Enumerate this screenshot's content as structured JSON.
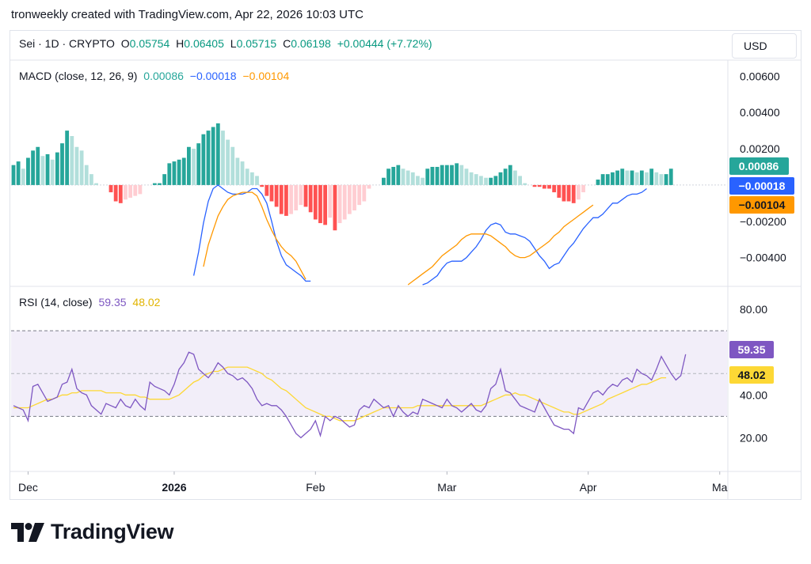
{
  "header": {
    "attribution": "tronweekly created with TradingView.com, Apr 22, 2026 10:03 UTC"
  },
  "symbol": {
    "name": "Sei · 1D · CRYPTO",
    "o_label": "O",
    "o_value": "0.05754",
    "h_label": "H",
    "h_value": "0.06405",
    "l_label": "L",
    "l_value": "0.05715",
    "c_label": "C",
    "c_value": "0.06198",
    "change": "+0.00444 (+7.72%)"
  },
  "currency": "USD",
  "macd": {
    "label": "MACD (close, 12, 26, 9)",
    "hist_value": "0.00086",
    "macd_value": "−0.00018",
    "signal_value": "−0.00104"
  },
  "rsi": {
    "label": "RSI (14, close)",
    "rsi_value": "59.35",
    "ma_value": "48.02"
  },
  "logo": {
    "text": "TradingView"
  },
  "colors": {
    "hist_pos_strong": "#26a69a",
    "hist_pos_weak": "#b2dfdb",
    "hist_neg_strong": "#ff5252",
    "hist_neg_weak": "#ffcdd2",
    "macd_line": "#2962ff",
    "signal_line": "#ff9800",
    "rsi_line": "#7e57c2",
    "rsi_ma": "#fdd835",
    "rsi_band": "#7e57c2"
  },
  "chart_data": [
    {
      "type": "bar",
      "name": "MACD",
      "x_ticks": [
        "Dec",
        "2026",
        "Feb",
        "Mar",
        "Apr",
        "Ma"
      ],
      "y_ticks": [
        "0.00600",
        "0.00400",
        "0.00200",
        "−0.00200",
        "−0.00400"
      ],
      "ylim": [
        -0.0055,
        0.0068
      ],
      "histogram": [
        0.0011,
        0.0013,
        0.0009,
        0.0015,
        0.0019,
        0.0021,
        0.0016,
        0.0017,
        0.0014,
        0.0018,
        0.0023,
        0.003,
        0.0027,
        0.0021,
        0.0019,
        0.0011,
        0.0006,
        0.0001,
        0,
        0,
        -0.0004,
        -0.0009,
        -0.001,
        -0.0008,
        -0.0007,
        -0.0006,
        -0.0005,
        0,
        0,
        0.0001,
        0.0001,
        0.0006,
        0.0012,
        0.0013,
        0.0014,
        0.0015,
        0.0021,
        0.002,
        0.0023,
        0.0028,
        0.003,
        0.0032,
        0.0034,
        0.003,
        0.0025,
        0.0021,
        0.0015,
        0.0013,
        0.0009,
        0.0007,
        0.0005,
        -0.0001,
        -0.0006,
        -0.0009,
        -0.0012,
        -0.0016,
        -0.0017,
        -0.0016,
        -0.0014,
        -0.0011,
        -0.0012,
        -0.0015,
        -0.0019,
        -0.0021,
        -0.0022,
        -0.0018,
        -0.0025,
        -0.0021,
        -0.0019,
        -0.0016,
        -0.0014,
        -0.0011,
        -0.0009,
        -0.0002,
        0,
        0,
        0.0004,
        0.0009,
        0.001,
        0.0011,
        0.0009,
        0.0008,
        0.0007,
        0.0005,
        0.0004,
        0.0009,
        0.001,
        0.001,
        0.0011,
        0.0011,
        0.0011,
        0.0012,
        0.0011,
        0.0009,
        0.0007,
        0.0006,
        0.0005,
        0.0004,
        0.0004,
        0.0005,
        0.0007,
        0.0009,
        0.0011,
        0.0008,
        0.0005,
        0.0001,
        0,
        -0.0001,
        -0.0001,
        -0.0002,
        -0.0002,
        -0.0004,
        -0.0007,
        -0.0009,
        -0.0009,
        -0.001,
        -0.0008,
        -0.0004,
        0,
        0,
        0.0003,
        0.0006,
        0.0006,
        0.0007,
        0.0008,
        0.0009,
        0.0008,
        0.0008,
        0.0007,
        0.0008,
        0.0007,
        0.0009,
        0.0007,
        0.0006,
        0.0006,
        0.0009
      ],
      "macd_line": [
        null,
        null,
        null,
        null,
        null,
        null,
        null,
        null,
        null,
        null,
        null,
        null,
        null,
        null,
        null,
        null,
        null,
        null,
        null,
        null,
        null,
        null,
        null,
        null,
        null,
        null,
        null,
        null,
        null,
        null,
        null,
        null,
        null,
        null,
        null,
        null,
        null,
        -0.005,
        -0.0037,
        -0.0021,
        -0.0009,
        -0.0002,
        0.0,
        -0.0002,
        -0.0004,
        -0.0005,
        -0.0005,
        -0.0005,
        -0.0004,
        -0.0002,
        -0.0002,
        -0.0005,
        -0.001,
        -0.002,
        -0.0031,
        -0.0039,
        -0.0044,
        -0.0046,
        -0.0048,
        -0.005,
        -0.0053,
        -0.0053,
        -0.0058,
        -0.0063,
        -0.0068,
        -0.0072,
        -0.0075,
        -0.0077,
        -0.0078,
        -0.0079,
        -0.0079,
        -0.0078,
        -0.0076,
        -0.0073,
        -0.007,
        -0.0067,
        -0.0064,
        -0.0062,
        -0.006,
        -0.0058,
        -0.0057,
        -0.0056,
        -0.0056,
        -0.0056,
        -0.0055,
        -0.0054,
        -0.0052,
        -0.005,
        -0.0046,
        -0.0043,
        -0.0042,
        -0.0042,
        -0.0042,
        -0.004,
        -0.0037,
        -0.0034,
        -0.003,
        -0.0025,
        -0.0022,
        -0.0021,
        -0.0022,
        -0.0026,
        -0.0027,
        -0.0027,
        -0.0028,
        -0.0029,
        -0.0031,
        -0.0035,
        -0.0039,
        -0.0042,
        -0.0046,
        -0.0044,
        -0.0043,
        -0.0039,
        -0.0035,
        -0.0032,
        -0.0028,
        -0.0024,
        -0.0021,
        -0.0018,
        -0.0018,
        -0.0016,
        -0.0013,
        -0.001,
        -0.001,
        -0.0008,
        -0.0006,
        -0.0005,
        -0.0005,
        -0.0004,
        -0.0002
      ],
      "signal_line": [
        null,
        null,
        null,
        null,
        null,
        null,
        null,
        null,
        null,
        null,
        null,
        null,
        null,
        null,
        null,
        null,
        null,
        null,
        null,
        null,
        null,
        null,
        null,
        null,
        null,
        null,
        null,
        null,
        null,
        null,
        null,
        null,
        null,
        null,
        null,
        null,
        null,
        null,
        -0.0057,
        -0.0045,
        -0.0033,
        -0.0025,
        -0.0017,
        -0.0012,
        -0.0008,
        -0.0006,
        -0.0005,
        -0.0004,
        -0.0004,
        -0.0004,
        -0.0006,
        -0.0012,
        -0.0019,
        -0.0025,
        -0.003,
        -0.0034,
        -0.0037,
        -0.0039,
        -0.0042,
        -0.0047,
        -0.0052,
        -0.0057,
        -0.0061,
        -0.0065,
        -0.0069,
        -0.0072,
        -0.0074,
        -0.0075,
        -0.0076,
        -0.0075,
        -0.0073,
        -0.0071,
        -0.0069,
        -0.0067,
        -0.0066,
        -0.0064,
        -0.0063,
        -0.0062,
        -0.0061,
        -0.0059,
        -0.0057,
        -0.0055,
        -0.0053,
        -0.0051,
        -0.0049,
        -0.0047,
        -0.0045,
        -0.0042,
        -0.0039,
        -0.0037,
        -0.0035,
        -0.0033,
        -0.003,
        -0.0028,
        -0.0027,
        -0.0027,
        -0.0027,
        -0.0027,
        -0.0028,
        -0.003,
        -0.0032,
        -0.0034,
        -0.0037,
        -0.0039,
        -0.004,
        -0.004,
        -0.0039,
        -0.0037,
        -0.0035,
        -0.0033,
        -0.0031,
        -0.0028,
        -0.0026,
        -0.0023,
        -0.0021,
        -0.0019,
        -0.0017,
        -0.0015,
        -0.0013,
        -0.0011
      ],
      "signal_offset": 0
    },
    {
      "type": "line",
      "name": "RSI",
      "y_ticks": [
        "80.00",
        "40.00",
        "20.00"
      ],
      "ylim": [
        5,
        90
      ],
      "band": [
        30,
        70
      ],
      "midline": 50,
      "rsi": [
        35,
        34,
        33,
        28,
        44,
        45,
        41,
        37,
        38,
        39,
        45,
        46,
        52,
        43,
        41,
        40,
        35,
        33,
        31,
        36,
        35,
        34,
        38,
        35,
        34,
        38,
        35,
        33,
        46,
        44,
        43,
        42,
        40,
        45,
        52,
        55,
        60,
        59,
        52,
        50,
        48,
        51,
        55,
        53,
        50,
        49,
        47,
        48,
        46,
        43,
        38,
        35,
        36,
        35,
        35,
        33,
        30,
        26,
        22,
        20,
        22,
        24,
        28,
        21,
        30,
        28,
        30,
        29,
        27,
        25,
        26,
        33,
        35,
        34,
        38,
        36,
        34,
        35,
        30,
        35,
        32,
        30,
        32,
        31,
        38,
        37,
        36,
        35,
        34,
        38,
        35,
        34,
        32,
        34,
        36,
        33,
        32,
        35,
        43,
        45,
        52,
        42,
        41,
        38,
        35,
        34,
        33,
        32,
        38,
        34,
        30,
        26,
        25,
        24,
        24,
        22,
        34,
        33,
        37,
        41,
        42,
        40,
        43,
        45,
        44,
        47,
        48,
        46,
        52,
        50,
        49,
        47,
        52,
        58,
        54,
        50,
        47,
        49,
        59
      ],
      "rsi_ma": [
        34,
        34,
        34,
        34,
        35,
        36,
        37,
        38,
        38,
        39,
        40,
        40,
        41,
        41,
        42,
        42,
        42,
        42,
        42,
        41,
        41,
        41,
        41,
        40,
        40,
        40,
        39,
        39,
        38,
        38,
        38,
        38,
        38,
        39,
        40,
        42,
        44,
        46,
        47,
        49,
        50,
        51,
        51,
        52,
        53,
        53,
        53,
        53,
        53,
        52,
        51,
        50,
        48,
        47,
        45,
        43,
        42,
        40,
        38,
        36,
        34,
        33,
        32,
        31,
        30,
        30,
        29,
        28,
        28,
        28,
        28,
        29,
        30,
        31,
        32,
        33,
        34,
        34,
        34,
        34,
        34,
        34,
        34,
        35,
        35,
        35,
        35,
        35,
        35,
        35,
        35,
        35,
        35,
        35,
        35,
        35,
        35,
        36,
        37,
        38,
        39,
        40,
        40,
        41,
        40,
        40,
        39,
        38,
        37,
        36,
        35,
        34,
        33,
        32,
        32,
        31,
        31,
        32,
        33,
        34,
        35,
        36,
        38,
        39,
        40,
        41,
        42,
        43,
        44,
        45,
        45,
        46,
        47,
        48,
        48
      ]
    }
  ]
}
